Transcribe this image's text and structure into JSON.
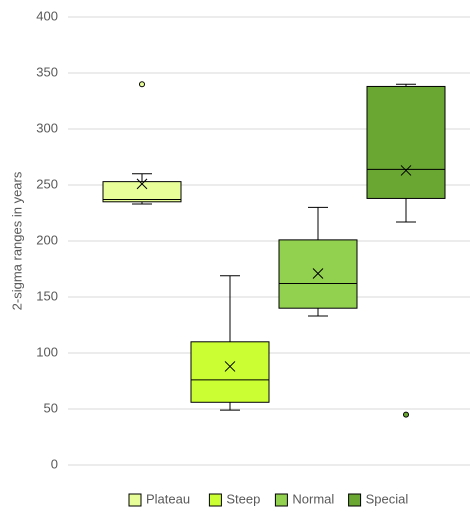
{
  "chart_data": {
    "type": "box",
    "y_label": "2-sigma ranges in years",
    "ylim": [
      0,
      400
    ],
    "yticks": [
      0,
      50,
      100,
      150,
      200,
      250,
      300,
      350,
      400
    ],
    "grid": true,
    "legend": "bottom",
    "series": [
      {
        "name": "Plateau",
        "color": "#e8ff99",
        "min": 233,
        "q1": 235,
        "median": 237,
        "q3": 253,
        "max": 260,
        "mean": 251,
        "outliers": [
          340
        ]
      },
      {
        "name": "Steep",
        "color": "#ccff33",
        "min": 49,
        "q1": 56,
        "median": 76,
        "q3": 110,
        "max": 169,
        "mean": 88,
        "outliers": []
      },
      {
        "name": "Normal",
        "color": "#92d050",
        "min": 133,
        "q1": 140,
        "median": 162,
        "q3": 201,
        "max": 230,
        "mean": 171,
        "outliers": []
      },
      {
        "name": "Special",
        "color": "#6aa632",
        "min": 217,
        "q1": 238,
        "median": 264,
        "q3": 338,
        "max": 340,
        "mean": 263,
        "outliers": [
          45
        ]
      }
    ]
  }
}
